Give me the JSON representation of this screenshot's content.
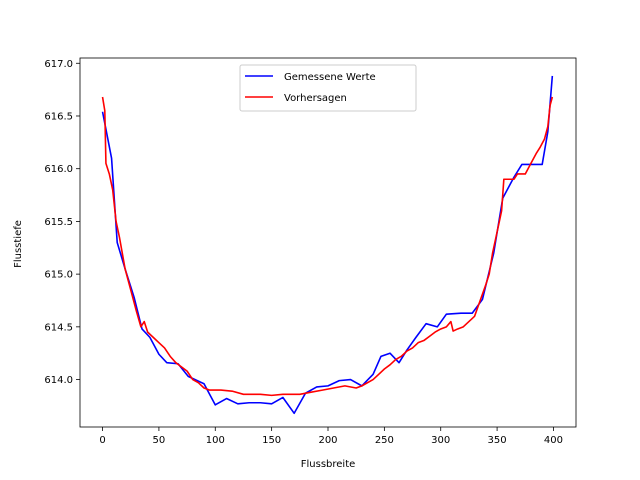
{
  "chart_data": {
    "type": "line",
    "xlabel": "Flussbreite",
    "ylabel": "Flusstiefe",
    "xlim": [
      -20,
      420
    ],
    "ylim": [
      613.55,
      617.05
    ],
    "xticks": [
      0,
      50,
      100,
      150,
      200,
      250,
      300,
      350,
      400
    ],
    "yticks": [
      614.0,
      614.5,
      615.0,
      615.5,
      616.0,
      616.5,
      617.0
    ],
    "ytick_labels": [
      "614.0",
      "614.5",
      "615.0",
      "615.5",
      "616.0",
      "616.5",
      "617.0"
    ],
    "grid": false,
    "legend_position": "upper center",
    "series": [
      {
        "name": "Gemessene Werte",
        "color": "#0000ff",
        "points": [
          [
            0,
            616.54
          ],
          [
            8,
            616.1
          ],
          [
            13,
            615.3
          ],
          [
            20,
            615.05
          ],
          [
            28,
            614.78
          ],
          [
            35,
            614.48
          ],
          [
            42,
            614.4
          ],
          [
            50,
            614.24
          ],
          [
            57,
            614.16
          ],
          [
            67,
            614.15
          ],
          [
            76,
            614.03
          ],
          [
            90,
            613.96
          ],
          [
            100,
            613.76
          ],
          [
            110,
            613.82
          ],
          [
            120,
            613.77
          ],
          [
            130,
            613.78
          ],
          [
            140,
            613.78
          ],
          [
            150,
            613.77
          ],
          [
            160,
            613.83
          ],
          [
            170,
            613.68
          ],
          [
            180,
            613.87
          ],
          [
            190,
            613.93
          ],
          [
            200,
            613.94
          ],
          [
            210,
            613.99
          ],
          [
            220,
            614.0
          ],
          [
            230,
            613.94
          ],
          [
            240,
            614.05
          ],
          [
            247,
            614.22
          ],
          [
            255,
            614.25
          ],
          [
            263,
            614.16
          ],
          [
            270,
            614.28
          ],
          [
            278,
            614.4
          ],
          [
            287,
            614.53
          ],
          [
            297,
            614.5
          ],
          [
            305,
            614.62
          ],
          [
            318,
            614.63
          ],
          [
            328,
            614.63
          ],
          [
            337,
            614.76
          ],
          [
            347,
            615.2
          ],
          [
            355,
            615.72
          ],
          [
            365,
            615.92
          ],
          [
            372,
            616.04
          ],
          [
            385,
            616.04
          ],
          [
            390,
            616.04
          ],
          [
            395,
            616.35
          ],
          [
            399,
            616.88
          ]
        ]
      },
      {
        "name": "Vorhersagen",
        "color": "#ff0000",
        "points": [
          [
            0,
            616.68
          ],
          [
            2,
            616.55
          ],
          [
            3,
            616.05
          ],
          [
            6,
            615.95
          ],
          [
            9,
            615.8
          ],
          [
            12,
            615.5
          ],
          [
            15,
            615.35
          ],
          [
            20,
            615.05
          ],
          [
            25,
            614.85
          ],
          [
            30,
            614.65
          ],
          [
            34,
            614.5
          ],
          [
            37,
            614.55
          ],
          [
            40,
            614.45
          ],
          [
            45,
            614.4
          ],
          [
            50,
            614.35
          ],
          [
            55,
            614.3
          ],
          [
            60,
            614.22
          ],
          [
            65,
            614.16
          ],
          [
            70,
            614.12
          ],
          [
            75,
            614.08
          ],
          [
            80,
            614.0
          ],
          [
            85,
            613.97
          ],
          [
            90,
            613.92
          ],
          [
            95,
            613.9
          ],
          [
            105,
            613.9
          ],
          [
            115,
            613.89
          ],
          [
            125,
            613.86
          ],
          [
            140,
            613.86
          ],
          [
            150,
            613.85
          ],
          [
            160,
            613.86
          ],
          [
            175,
            613.86
          ],
          [
            185,
            613.88
          ],
          [
            195,
            613.9
          ],
          [
            205,
            613.92
          ],
          [
            215,
            613.94
          ],
          [
            225,
            613.92
          ],
          [
            230,
            613.94
          ],
          [
            240,
            614.0
          ],
          [
            245,
            614.05
          ],
          [
            250,
            614.1
          ],
          [
            255,
            614.14
          ],
          [
            260,
            614.19
          ],
          [
            265,
            614.22
          ],
          [
            270,
            614.27
          ],
          [
            275,
            614.3
          ],
          [
            280,
            614.35
          ],
          [
            285,
            614.37
          ],
          [
            290,
            614.41
          ],
          [
            295,
            614.45
          ],
          [
            300,
            614.48
          ],
          [
            305,
            614.5
          ],
          [
            309,
            614.55
          ],
          [
            311,
            614.46
          ],
          [
            315,
            614.48
          ],
          [
            320,
            614.5
          ],
          [
            325,
            614.55
          ],
          [
            330,
            614.6
          ],
          [
            335,
            614.75
          ],
          [
            340,
            614.9
          ],
          [
            343,
            615.0
          ],
          [
            346,
            615.2
          ],
          [
            349,
            615.35
          ],
          [
            352,
            615.5
          ],
          [
            354,
            615.6
          ],
          [
            356,
            615.9
          ],
          [
            360,
            615.9
          ],
          [
            365,
            615.9
          ],
          [
            368,
            615.95
          ],
          [
            375,
            615.95
          ],
          [
            380,
            616.05
          ],
          [
            385,
            616.15
          ],
          [
            388,
            616.2
          ],
          [
            392,
            616.28
          ],
          [
            395,
            616.4
          ],
          [
            397,
            616.6
          ],
          [
            399,
            616.68
          ]
        ]
      }
    ]
  }
}
